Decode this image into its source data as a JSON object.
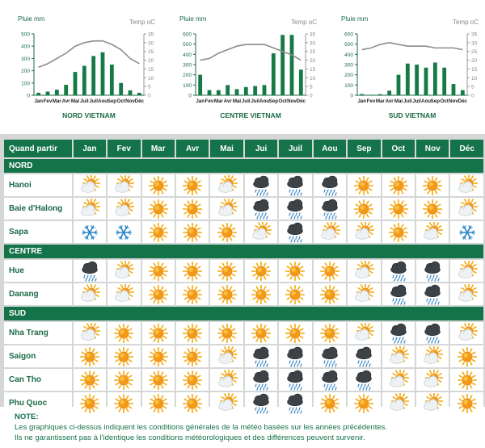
{
  "chart_data": [
    {
      "type": "bar",
      "title": "NORD VIETNAM",
      "ylabel_left": "Pluie mm",
      "ylabel_right": "Temp oC",
      "categories": [
        "Jan",
        "Fev",
        "Mar",
        "Avr",
        "Mai",
        "Juil",
        "Juil",
        "Aou",
        "Sep",
        "Oct",
        "Nov",
        "Déc"
      ],
      "yticks_left": [
        "0",
        "100",
        "200",
        "300",
        "400",
        "500"
      ],
      "yticks_right": [
        "0",
        "5",
        "10",
        "15",
        "20",
        "25",
        "30",
        "35"
      ],
      "ylim": [
        0,
        500
      ],
      "y2lim": [
        0,
        35
      ],
      "series": [
        {
          "type": "bar",
          "values": [
            20,
            30,
            45,
            85,
            190,
            240,
            320,
            350,
            250,
            100,
            40,
            20
          ]
        },
        {
          "type": "line",
          "values": [
            16,
            18,
            21,
            24,
            28,
            30,
            31,
            31,
            29,
            26,
            21,
            18
          ]
        }
      ]
    },
    {
      "type": "bar",
      "title": "CENTRE VIETNAM",
      "ylabel_left": "Pluie mm",
      "ylabel_right": "Temp oC",
      "categories": [
        "Jan",
        "Fev",
        "Mar",
        "Avr",
        "Mai",
        "Juil",
        "Juil",
        "Aou",
        "Sep",
        "Oct",
        "Nov",
        "Déc"
      ],
      "yticks_left": [
        "0",
        "100",
        "200",
        "300",
        "400",
        "500",
        "600"
      ],
      "yticks_right": [
        "0",
        "5",
        "10",
        "15",
        "20",
        "25",
        "30",
        "35"
      ],
      "ylim": [
        0,
        600
      ],
      "y2lim": [
        0,
        35
      ],
      "series": [
        {
          "type": "bar",
          "values": [
            200,
            50,
            50,
            100,
            60,
            80,
            90,
            100,
            410,
            590,
            590,
            250
          ]
        },
        {
          "type": "line",
          "values": [
            20,
            21,
            24,
            26,
            28,
            29,
            29,
            29,
            27,
            25,
            23,
            20
          ]
        }
      ]
    },
    {
      "type": "bar",
      "title": "SUD VIETNAM",
      "ylabel_left": "Pluie mm",
      "ylabel_right": "Temp oC",
      "categories": [
        "Jan",
        "Fev",
        "Mar",
        "Avr",
        "Mai",
        "Juil",
        "Juil",
        "Aou",
        "Sep",
        "Oct",
        "Nov",
        "Déc"
      ],
      "yticks_left": [
        "0",
        "100",
        "200",
        "300",
        "400",
        "500",
        "600"
      ],
      "yticks_right": [
        "0",
        "5",
        "10",
        "15",
        "20",
        "25",
        "30",
        "35"
      ],
      "ylim": [
        0,
        600
      ],
      "y2lim": [
        0,
        35
      ],
      "series": [
        {
          "type": "bar",
          "values": [
            12,
            5,
            10,
            45,
            200,
            310,
            300,
            270,
            320,
            270,
            110,
            50
          ]
        },
        {
          "type": "line",
          "values": [
            26,
            27,
            29,
            30,
            29,
            28,
            28,
            28,
            27,
            27,
            27,
            26
          ]
        }
      ]
    }
  ],
  "table": {
    "header_first": "Quand partir",
    "months": [
      "Jan",
      "Fev",
      "Mar",
      "Avr",
      "Mai",
      "Jui",
      "Juil",
      "Aou",
      "Sep",
      "Oct",
      "Nov",
      "Déc"
    ],
    "sections": [
      {
        "name": "NORD",
        "rows": [
          {
            "city": "Hanoi",
            "icons": [
              "cloud-sun",
              "cloud-sun",
              "sun",
              "sun",
              "cloud-sun",
              "storm",
              "storm",
              "storm",
              "sun",
              "sun",
              "sun",
              "cloud-sun"
            ]
          },
          {
            "city": "Baie d'Halong",
            "icons": [
              "cloud-sun",
              "cloud-sun",
              "sun",
              "sun",
              "cloud-sun",
              "storm",
              "storm",
              "storm",
              "sun",
              "sun",
              "sun",
              "cloud-sun"
            ]
          },
          {
            "city": "Sapa",
            "icons": [
              "snow",
              "snow",
              "sun",
              "sun",
              "sun",
              "cloud-sun",
              "storm",
              "cloud-sun",
              "cloud-sun",
              "sun",
              "cloud-sun",
              "snow"
            ]
          }
        ]
      },
      {
        "name": "CENTRE",
        "rows": [
          {
            "city": "Hue",
            "icons": [
              "storm",
              "cloud-sun",
              "sun",
              "sun",
              "sun",
              "sun",
              "sun",
              "sun",
              "cloud-sun",
              "storm",
              "storm",
              "cloud-sun"
            ]
          },
          {
            "city": "Danang",
            "icons": [
              "cloud-sun",
              "cloud-sun",
              "sun",
              "sun",
              "sun",
              "sun",
              "sun",
              "sun",
              "cloud-sun",
              "storm",
              "storm",
              "cloud-sun"
            ]
          }
        ]
      },
      {
        "name": "SUD",
        "rows": [
          {
            "city": "Nha Trang",
            "icons": [
              "cloud-sun",
              "sun",
              "sun",
              "sun",
              "sun",
              "sun",
              "sun",
              "sun",
              "cloud-sun",
              "storm",
              "storm",
              "cloud-sun"
            ]
          },
          {
            "city": "Saigon",
            "icons": [
              "sun",
              "sun",
              "sun",
              "sun",
              "cloud-sun",
              "storm",
              "storm",
              "storm",
              "storm",
              "cloud-sun",
              "cloud-sun",
              "sun"
            ]
          },
          {
            "city": "Can Tho",
            "icons": [
              "sun",
              "sun",
              "sun",
              "sun",
              "cloud-sun",
              "storm",
              "storm",
              "storm",
              "storm",
              "cloud-sun",
              "cloud-sun",
              "sun"
            ]
          },
          {
            "city": "Phu Quoc",
            "icons": [
              "sun",
              "sun",
              "sun",
              "sun",
              "cloud-sun",
              "storm",
              "storm",
              "sun",
              "sun",
              "cloud-sun",
              "cloud-sun",
              "sun"
            ]
          }
        ]
      }
    ]
  },
  "note": {
    "title": "NOTE:",
    "line1": "Les graphiques ci-dessus indiquent les conditions générales de la météo basées sur les années précédentes.",
    "line2": "Ils ne garantissent pas à l'identique les conditions météorologiques et des différences peuvent survenir."
  },
  "colors": {
    "bar": "#157a45",
    "line": "#8c8c8c",
    "header_bg": "#15734a",
    "grid_bg": "#d5d7d6",
    "sun": "#f4a31a",
    "snow": "#2a86c9",
    "storm_cloud": "#3b4145"
  }
}
